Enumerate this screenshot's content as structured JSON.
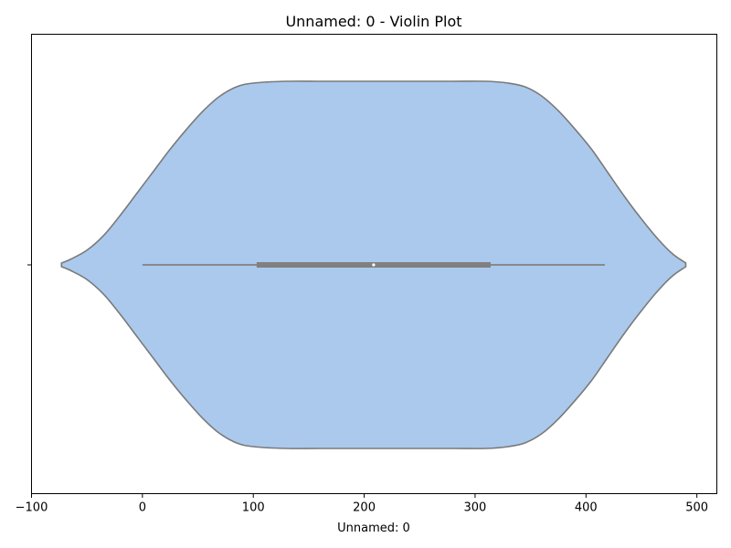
{
  "chart_data": {
    "type": "violin",
    "title": "Unnamed: 0 - Violin Plot",
    "xlabel": "Unnamed: 0",
    "ylabel": "",
    "xlim": [
      -100,
      518
    ],
    "x_ticks": [
      -100,
      0,
      100,
      200,
      300,
      400,
      500
    ],
    "x_tick_labels": [
      "−100",
      "0",
      "100",
      "200",
      "300",
      "400",
      "500"
    ],
    "y_tick_labels": [
      ""
    ],
    "grid": false,
    "legend": "none",
    "violin": {
      "orientation": "horizontal",
      "min": 0,
      "q1": 103,
      "median": 208.5,
      "q3": 314,
      "max": 417,
      "kde_extent": [
        -73,
        490
      ],
      "density_profile": [
        [
          -73,
          0.01
        ],
        [
          -65,
          0.03
        ],
        [
          -50,
          0.08
        ],
        [
          -35,
          0.16
        ],
        [
          -20,
          0.27
        ],
        [
          -5,
          0.39
        ],
        [
          10,
          0.51
        ],
        [
          25,
          0.63
        ],
        [
          40,
          0.74
        ],
        [
          55,
          0.84
        ],
        [
          70,
          0.92
        ],
        [
          85,
          0.97
        ],
        [
          100,
          0.99
        ],
        [
          130,
          1.0
        ],
        [
          160,
          1.0
        ],
        [
          200,
          1.0
        ],
        [
          240,
          1.0
        ],
        [
          280,
          1.0
        ],
        [
          310,
          1.0
        ],
        [
          330,
          0.99
        ],
        [
          345,
          0.97
        ],
        [
          360,
          0.92
        ],
        [
          375,
          0.84
        ],
        [
          390,
          0.74
        ],
        [
          405,
          0.63
        ],
        [
          420,
          0.5
        ],
        [
          435,
          0.37
        ],
        [
          450,
          0.25
        ],
        [
          465,
          0.14
        ],
        [
          478,
          0.06
        ],
        [
          490,
          0.01
        ]
      ]
    },
    "colors": {
      "violin_fill": "#aac9ed",
      "violin_edge": "#7a7a7a",
      "box": "#808080",
      "whisker": "#808080",
      "median_dot": "#ffffff"
    }
  }
}
